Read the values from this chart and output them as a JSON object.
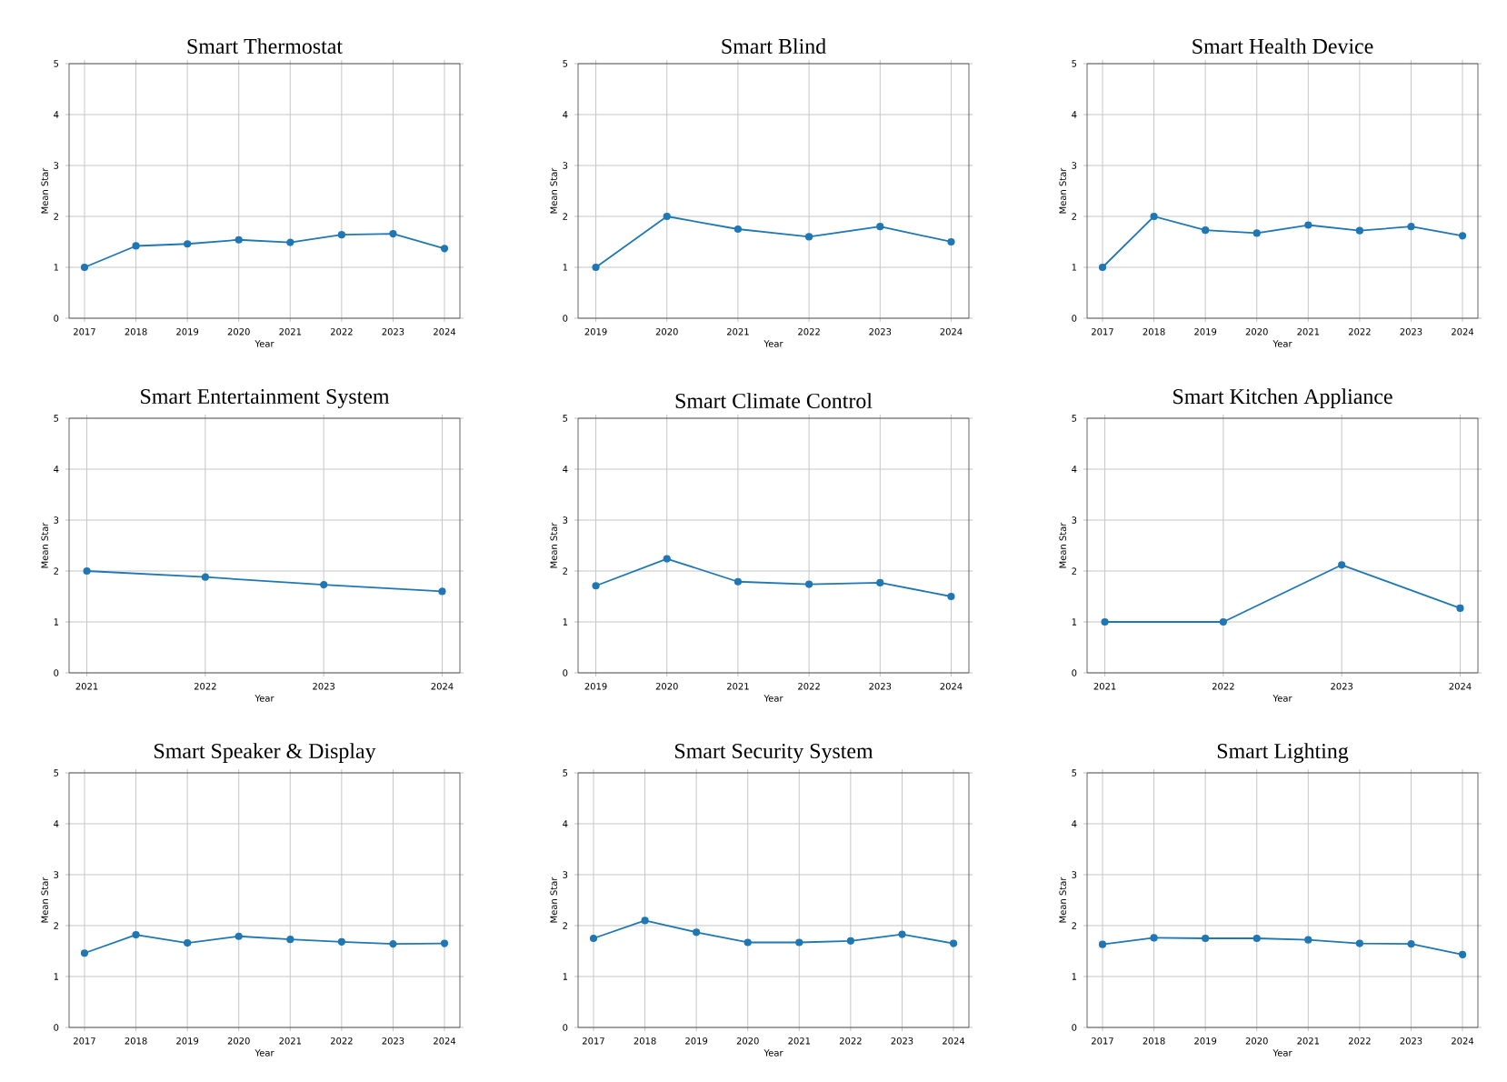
{
  "chart_data": [
    {
      "type": "line",
      "title": "Smart Thermostat",
      "xlabel": "Year",
      "ylabel": "Mean Star",
      "x": [
        2017,
        2018,
        2019,
        2020,
        2021,
        2022,
        2023,
        2024
      ],
      "values": [
        1.0,
        1.42,
        1.46,
        1.54,
        1.49,
        1.64,
        1.66,
        1.37
      ],
      "color": "#1f77b4",
      "xlim": [
        2016.7,
        2024.3
      ],
      "xticks": [
        2017,
        2018,
        2019,
        2020,
        2021,
        2022,
        2023,
        2024
      ],
      "ylim": [
        0,
        5
      ],
      "yticks": [
        0,
        1,
        2,
        3,
        4,
        5
      ],
      "grid": true,
      "marker": "circle"
    },
    {
      "type": "line",
      "title": "Smart Blind",
      "xlabel": "Year",
      "ylabel": "Mean Star",
      "x": [
        2019,
        2020,
        2021,
        2022,
        2023,
        2024
      ],
      "values": [
        1.0,
        2.0,
        1.75,
        1.6,
        1.8,
        1.5
      ],
      "color": "#1f77b4",
      "xlim": [
        2018.75,
        2024.25
      ],
      "xticks": [
        2019,
        2020,
        2021,
        2022,
        2023,
        2024
      ],
      "ylim": [
        0,
        5
      ],
      "yticks": [
        0,
        1,
        2,
        3,
        4,
        5
      ],
      "grid": true,
      "marker": "circle"
    },
    {
      "type": "line",
      "title": "Smart Health Device",
      "xlabel": "Year",
      "ylabel": "Mean Star",
      "x": [
        2017,
        2018,
        2019,
        2020,
        2021,
        2022,
        2023,
        2024
      ],
      "values": [
        1.0,
        2.0,
        1.73,
        1.67,
        1.83,
        1.72,
        1.8,
        1.62
      ],
      "color": "#1f77b4",
      "xlim": [
        2016.7,
        2024.3
      ],
      "xticks": [
        2017,
        2018,
        2019,
        2020,
        2021,
        2022,
        2023,
        2024
      ],
      "ylim": [
        0,
        5
      ],
      "yticks": [
        0,
        1,
        2,
        3,
        4,
        5
      ],
      "grid": true,
      "marker": "circle"
    },
    {
      "type": "line",
      "title": "Smart Entertainment System",
      "xlabel": "Year",
      "ylabel": "Mean Star",
      "x": [
        2021,
        2022,
        2023,
        2024
      ],
      "values": [
        2.0,
        1.88,
        1.73,
        1.6
      ],
      "color": "#1f77b4",
      "xlim": [
        2020.85,
        2024.15
      ],
      "xticks": [
        2021,
        2022,
        2023,
        2024
      ],
      "ylim": [
        0,
        5
      ],
      "yticks": [
        0,
        1,
        2,
        3,
        4,
        5
      ],
      "grid": true,
      "marker": "circle"
    },
    {
      "type": "line",
      "title": "Smart Climate Control",
      "xlabel": "Year",
      "ylabel": "Mean Star",
      "x": [
        2019,
        2020,
        2021,
        2022,
        2023,
        2024
      ],
      "values": [
        1.71,
        2.24,
        1.79,
        1.74,
        1.77,
        1.5
      ],
      "color": "#1f77b4",
      "xlim": [
        2018.75,
        2024.25
      ],
      "xticks": [
        2019,
        2020,
        2021,
        2022,
        2023,
        2024
      ],
      "ylim": [
        0,
        5
      ],
      "yticks": [
        0,
        1,
        2,
        3,
        4,
        5
      ],
      "grid": true,
      "marker": "circle"
    },
    {
      "type": "line",
      "title": "Smart Kitchen Appliance",
      "xlabel": "Year",
      "ylabel": "Mean Star",
      "x": [
        2021,
        2022,
        2023,
        2024
      ],
      "values": [
        1.0,
        1.0,
        2.12,
        1.27
      ],
      "color": "#1f77b4",
      "xlim": [
        2020.85,
        2024.15
      ],
      "xticks": [
        2021,
        2022,
        2023,
        2024
      ],
      "ylim": [
        0,
        5
      ],
      "yticks": [
        0,
        1,
        2,
        3,
        4,
        5
      ],
      "grid": true,
      "marker": "circle"
    },
    {
      "type": "line",
      "title": "Smart Speaker & Display",
      "xlabel": "Year",
      "ylabel": "Mean Star",
      "x": [
        2017,
        2018,
        2019,
        2020,
        2021,
        2022,
        2023,
        2024
      ],
      "values": [
        1.46,
        1.82,
        1.66,
        1.79,
        1.73,
        1.68,
        1.64,
        1.65
      ],
      "color": "#1f77b4",
      "xlim": [
        2016.7,
        2024.3
      ],
      "xticks": [
        2017,
        2018,
        2019,
        2020,
        2021,
        2022,
        2023,
        2024
      ],
      "ylim": [
        0,
        5
      ],
      "yticks": [
        0,
        1,
        2,
        3,
        4,
        5
      ],
      "grid": true,
      "marker": "circle"
    },
    {
      "type": "line",
      "title": "Smart Security System",
      "xlabel": "Year",
      "ylabel": "Mean Star",
      "x": [
        2017,
        2018,
        2019,
        2020,
        2021,
        2022,
        2023,
        2024
      ],
      "values": [
        1.75,
        2.1,
        1.87,
        1.67,
        1.67,
        1.7,
        1.83,
        1.65
      ],
      "color": "#1f77b4",
      "xlim": [
        2016.7,
        2024.3
      ],
      "xticks": [
        2017,
        2018,
        2019,
        2020,
        2021,
        2022,
        2023,
        2024
      ],
      "ylim": [
        0,
        5
      ],
      "yticks": [
        0,
        1,
        2,
        3,
        4,
        5
      ],
      "grid": true,
      "marker": "circle"
    },
    {
      "type": "line",
      "title": "Smart Lighting",
      "xlabel": "Year",
      "ylabel": "Mean Star",
      "x": [
        2017,
        2018,
        2019,
        2020,
        2021,
        2022,
        2023,
        2024
      ],
      "values": [
        1.63,
        1.76,
        1.75,
        1.75,
        1.72,
        1.65,
        1.64,
        1.43
      ],
      "color": "#1f77b4",
      "xlim": [
        2016.7,
        2024.3
      ],
      "xticks": [
        2017,
        2018,
        2019,
        2020,
        2021,
        2022,
        2023,
        2024
      ],
      "ylim": [
        0,
        5
      ],
      "yticks": [
        0,
        1,
        2,
        3,
        4,
        5
      ],
      "grid": true,
      "marker": "circle"
    }
  ]
}
